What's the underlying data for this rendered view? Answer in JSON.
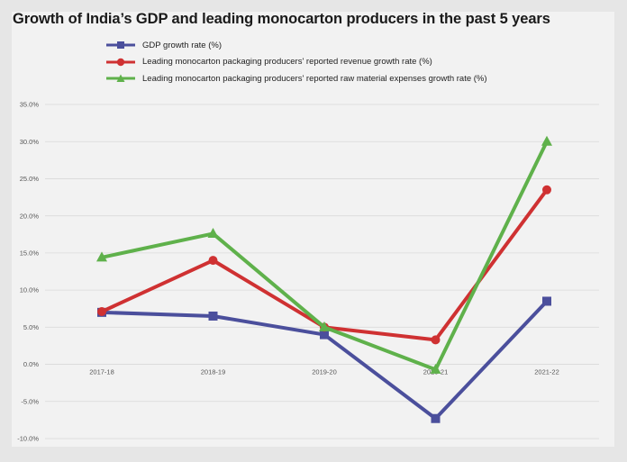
{
  "chart_data": {
    "type": "line",
    "title": "Growth of India’s GDP and leading monocarton producers in the past 5 years",
    "xlabel": "",
    "ylabel": "",
    "categories": [
      "2017-18",
      "2018-19",
      "2019-20",
      "2020-21",
      "2021-22"
    ],
    "ylim": [
      -10,
      35
    ],
    "yticks": [
      35,
      30,
      25,
      20,
      15,
      10,
      5,
      0,
      -5,
      -10
    ],
    "ytick_labels": [
      "35.0%",
      "30.0%",
      "25.0%",
      "20.0%",
      "15.0%",
      "10.0%",
      "5.0%",
      "0.0%",
      "-5.0%",
      "-10.0%"
    ],
    "grid": true,
    "legend_position": "top-left",
    "series": [
      {
        "name": "GDP growth rate (%)",
        "color": "#4b4f9c",
        "marker": "square",
        "values": [
          7.0,
          6.5,
          4.0,
          -7.3,
          8.5
        ]
      },
      {
        "name": "Leading monocarton packaging producers' reported revenue growth rate (%)",
        "color": "#cf3132",
        "marker": "circle",
        "values": [
          7.1,
          14.0,
          5.0,
          3.3,
          23.5
        ]
      },
      {
        "name": "Leading monocarton packaging producers' reported raw material expenses growth rate (%)",
        "color": "#5fb14b",
        "marker": "triangle",
        "values": [
          14.4,
          17.6,
          5.0,
          -0.7,
          30.0
        ]
      }
    ]
  }
}
